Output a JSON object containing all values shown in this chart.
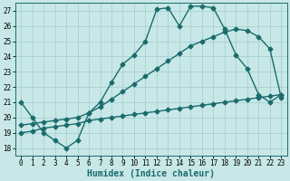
{
  "xlabel": "Humidex (Indice chaleur)",
  "background_color": "#c8e8e8",
  "grid_color": "#a8d0d0",
  "line_color": "#1a6b6b",
  "xlim": [
    -0.5,
    23.5
  ],
  "ylim": [
    17.5,
    27.5
  ],
  "xticks": [
    0,
    1,
    2,
    3,
    4,
    5,
    6,
    7,
    8,
    9,
    10,
    11,
    12,
    13,
    14,
    15,
    16,
    17,
    18,
    19,
    20,
    21,
    22,
    23
  ],
  "yticks": [
    18,
    19,
    20,
    21,
    22,
    23,
    24,
    25,
    26,
    27
  ],
  "line1_x": [
    0,
    1,
    2,
    3,
    4,
    5,
    6,
    7,
    8,
    9,
    10,
    11,
    12,
    13,
    14,
    15,
    16,
    17,
    18,
    19,
    20,
    21,
    22,
    23
  ],
  "line1_y": [
    21,
    20,
    19,
    18.5,
    18.0,
    18.5,
    20.3,
    21.0,
    22.3,
    23.5,
    24.1,
    25.0,
    27.1,
    27.2,
    26.0,
    27.3,
    27.3,
    27.2,
    25.8,
    24.1,
    23.2,
    21.5,
    21.0,
    21.5
  ],
  "line2_x": [
    0,
    1,
    2,
    3,
    4,
    5,
    6,
    7,
    8,
    9,
    10,
    11,
    12,
    13,
    14,
    15,
    16,
    17,
    18,
    19,
    20,
    21,
    22,
    23
  ],
  "line2_y": [
    19.5,
    19.6,
    19.7,
    19.8,
    19.9,
    20.0,
    20.3,
    20.7,
    21.2,
    21.7,
    22.2,
    22.7,
    23.2,
    23.7,
    24.2,
    24.7,
    25.0,
    25.3,
    25.6,
    25.8,
    25.7,
    25.3,
    24.5,
    21.3
  ],
  "line3_x": [
    0,
    1,
    2,
    3,
    4,
    5,
    6,
    7,
    8,
    9,
    10,
    11,
    12,
    13,
    14,
    15,
    16,
    17,
    18,
    19,
    20,
    21,
    22,
    23
  ],
  "line3_y": [
    19.0,
    19.1,
    19.3,
    19.4,
    19.5,
    19.6,
    19.8,
    19.9,
    20.0,
    20.1,
    20.2,
    20.3,
    20.4,
    20.5,
    20.6,
    20.7,
    20.8,
    20.9,
    21.0,
    21.1,
    21.2,
    21.3,
    21.4,
    21.5
  ],
  "marker": "D",
  "markersize": 2.5,
  "linewidth": 1.0,
  "tick_fontsize": 5.5,
  "label_fontsize": 7.0
}
